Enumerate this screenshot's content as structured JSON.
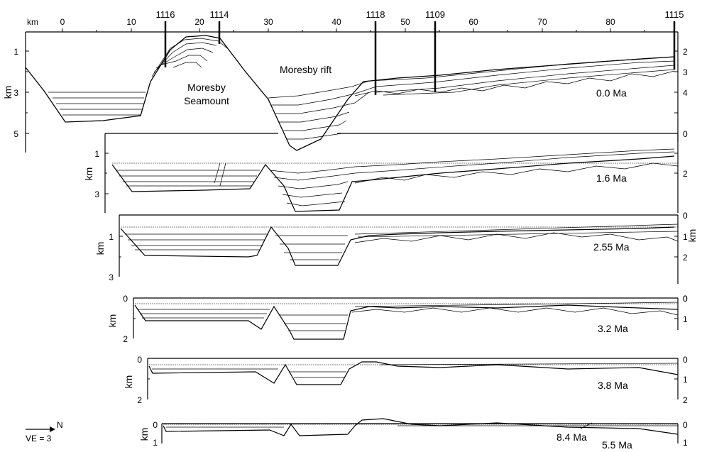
{
  "top_axis": {
    "unit": "km",
    "ticks": [
      "0",
      "10",
      "20",
      "30",
      "40",
      "50",
      "60",
      "70",
      "80"
    ]
  },
  "sites": [
    "1116",
    "1114",
    "1118",
    "1109",
    "1115"
  ],
  "labels": {
    "rift": "Moresby rift",
    "seamount_1": "Moresby",
    "seamount_2": "Seamount"
  },
  "panels": [
    {
      "age": "0.0 Ma",
      "axis_label": "km",
      "left_ticks": [
        "1",
        "3",
        "5"
      ],
      "right_ticks": [
        "2",
        "3",
        "4",
        "0"
      ]
    },
    {
      "age": "1.6 Ma",
      "axis_label": "km",
      "left_ticks": [
        "1",
        "3"
      ],
      "right_ticks": [
        "2",
        "0"
      ]
    },
    {
      "age": "2.55 Ma",
      "axis_label": "km",
      "left_ticks": [
        "1",
        "3"
      ],
      "right_ticks": [
        "1",
        "2",
        "0"
      ]
    },
    {
      "age": "3.2 Ma",
      "axis_label": "km",
      "left_ticks": [
        "0",
        "2"
      ],
      "right_ticks": [
        "0",
        "1"
      ]
    },
    {
      "age": "3.8 Ma",
      "axis_label": "km",
      "left_ticks": [
        "0",
        "2"
      ],
      "right_ticks": [
        "0",
        "1",
        "2"
      ]
    },
    {
      "age": "5.5 Ma",
      "axis_label": "km",
      "left_ticks": [
        "0",
        "1"
      ],
      "right_ticks": [
        "0",
        "1"
      ]
    }
  ],
  "extra_age": "8.4 Ma",
  "right_axis_label": "km",
  "legend": {
    "north": "N",
    "ve": "VE = 3"
  }
}
